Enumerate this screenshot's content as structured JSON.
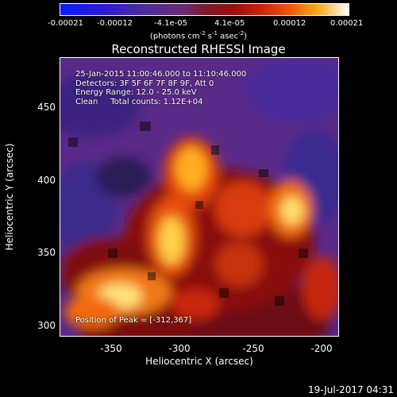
{
  "colorbar": {
    "ticks": [
      "-0.00021",
      "-0.00012",
      "-4.1e-05",
      "4.1e-05",
      "0.00012",
      "0.00021"
    ],
    "units_parts": [
      "(photons cm",
      "-2",
      " s",
      "-1",
      " asec",
      "-2",
      ")"
    ]
  },
  "title": "Reconstructed RHESSI Image",
  "info": {
    "time_range": "25-Jan-2015 11:00:46.000 to 11:10:46.000",
    "detectors": "Detectors: 3F 5F 6F 7F 8F 9F, Att 0",
    "energy": "Energy Range: 12.0 - 25.0 keV",
    "clean": "Clean     Total counts: 1.12E+04"
  },
  "peak": "Position of Peak = [-312,367]",
  "axes": {
    "x_ticks": [
      "-350",
      "-300",
      "-250",
      "-200"
    ],
    "y_ticks": [
      "450",
      "400",
      "350",
      "300"
    ],
    "xlabel": "Heliocentric X (arcsec)",
    "ylabel": "Heliocentric Y (arcsec)"
  },
  "timestamp": "19-Jul-2017 04:31"
}
